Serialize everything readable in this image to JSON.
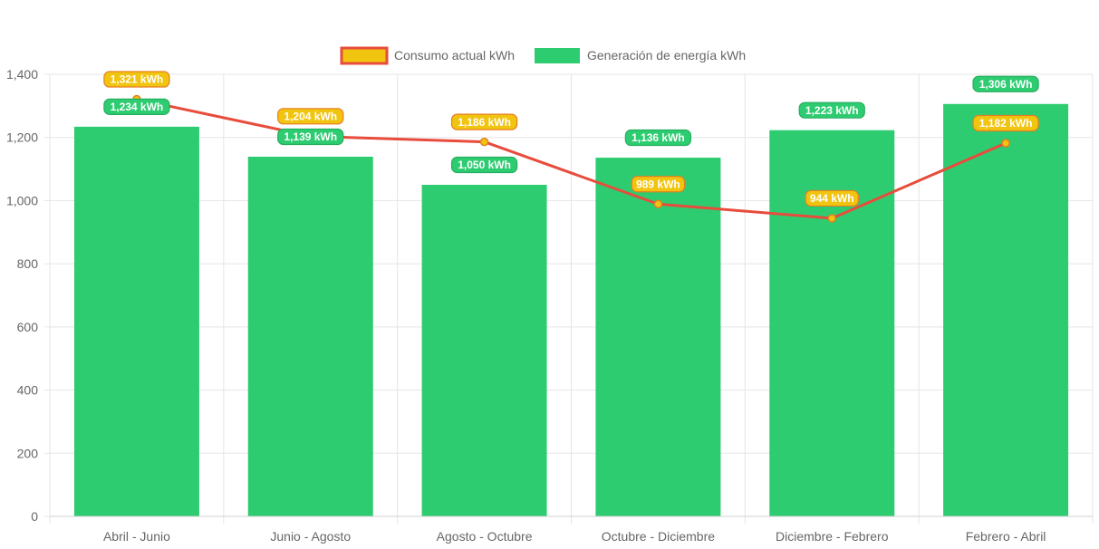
{
  "colors": {
    "generation": "#2ecc71",
    "consumption_line": "#e74c3c",
    "consumption_point": "#f1c40f",
    "label_border_generation": "#27ae60",
    "label_border_consumption": "#e67e22",
    "grid": "#e5e5e5",
    "axis_text": "#666666"
  },
  "chart_data": {
    "type": "bar",
    "categories": [
      "Abril - Junio",
      "Junio - Agosto",
      "Agosto - Octubre",
      "Octubre - Diciembre",
      "Diciembre - Febrero",
      "Febrero - Abril"
    ],
    "series": [
      {
        "name": "Consumo actual kWh",
        "type": "line",
        "values": [
          1321,
          1204,
          1186,
          989,
          944,
          1182
        ],
        "data_labels": [
          "1,321 kWh",
          "1,204 kWh",
          "1,186 kWh",
          "989 kWh",
          "944 kWh",
          "1,182 kWh"
        ]
      },
      {
        "name": "Generación de energía kWh",
        "type": "bar",
        "values": [
          1234,
          1139,
          1050,
          1136,
          1223,
          1306
        ],
        "data_labels": [
          "1,234 kWh",
          "1,139 kWh",
          "1,050 kWh",
          "1,136 kWh",
          "1,223 kWh",
          "1,306 kWh"
        ]
      }
    ],
    "ylim": [
      0,
      1400
    ],
    "yticks": [
      0,
      200,
      400,
      600,
      800,
      1000,
      1200,
      1400
    ],
    "ytick_labels": [
      "0",
      "200",
      "400",
      "600",
      "800",
      "1,000",
      "1,200",
      "1,400"
    ],
    "xlabel": "",
    "ylabel": "",
    "grid": true,
    "legend_position": "top"
  }
}
